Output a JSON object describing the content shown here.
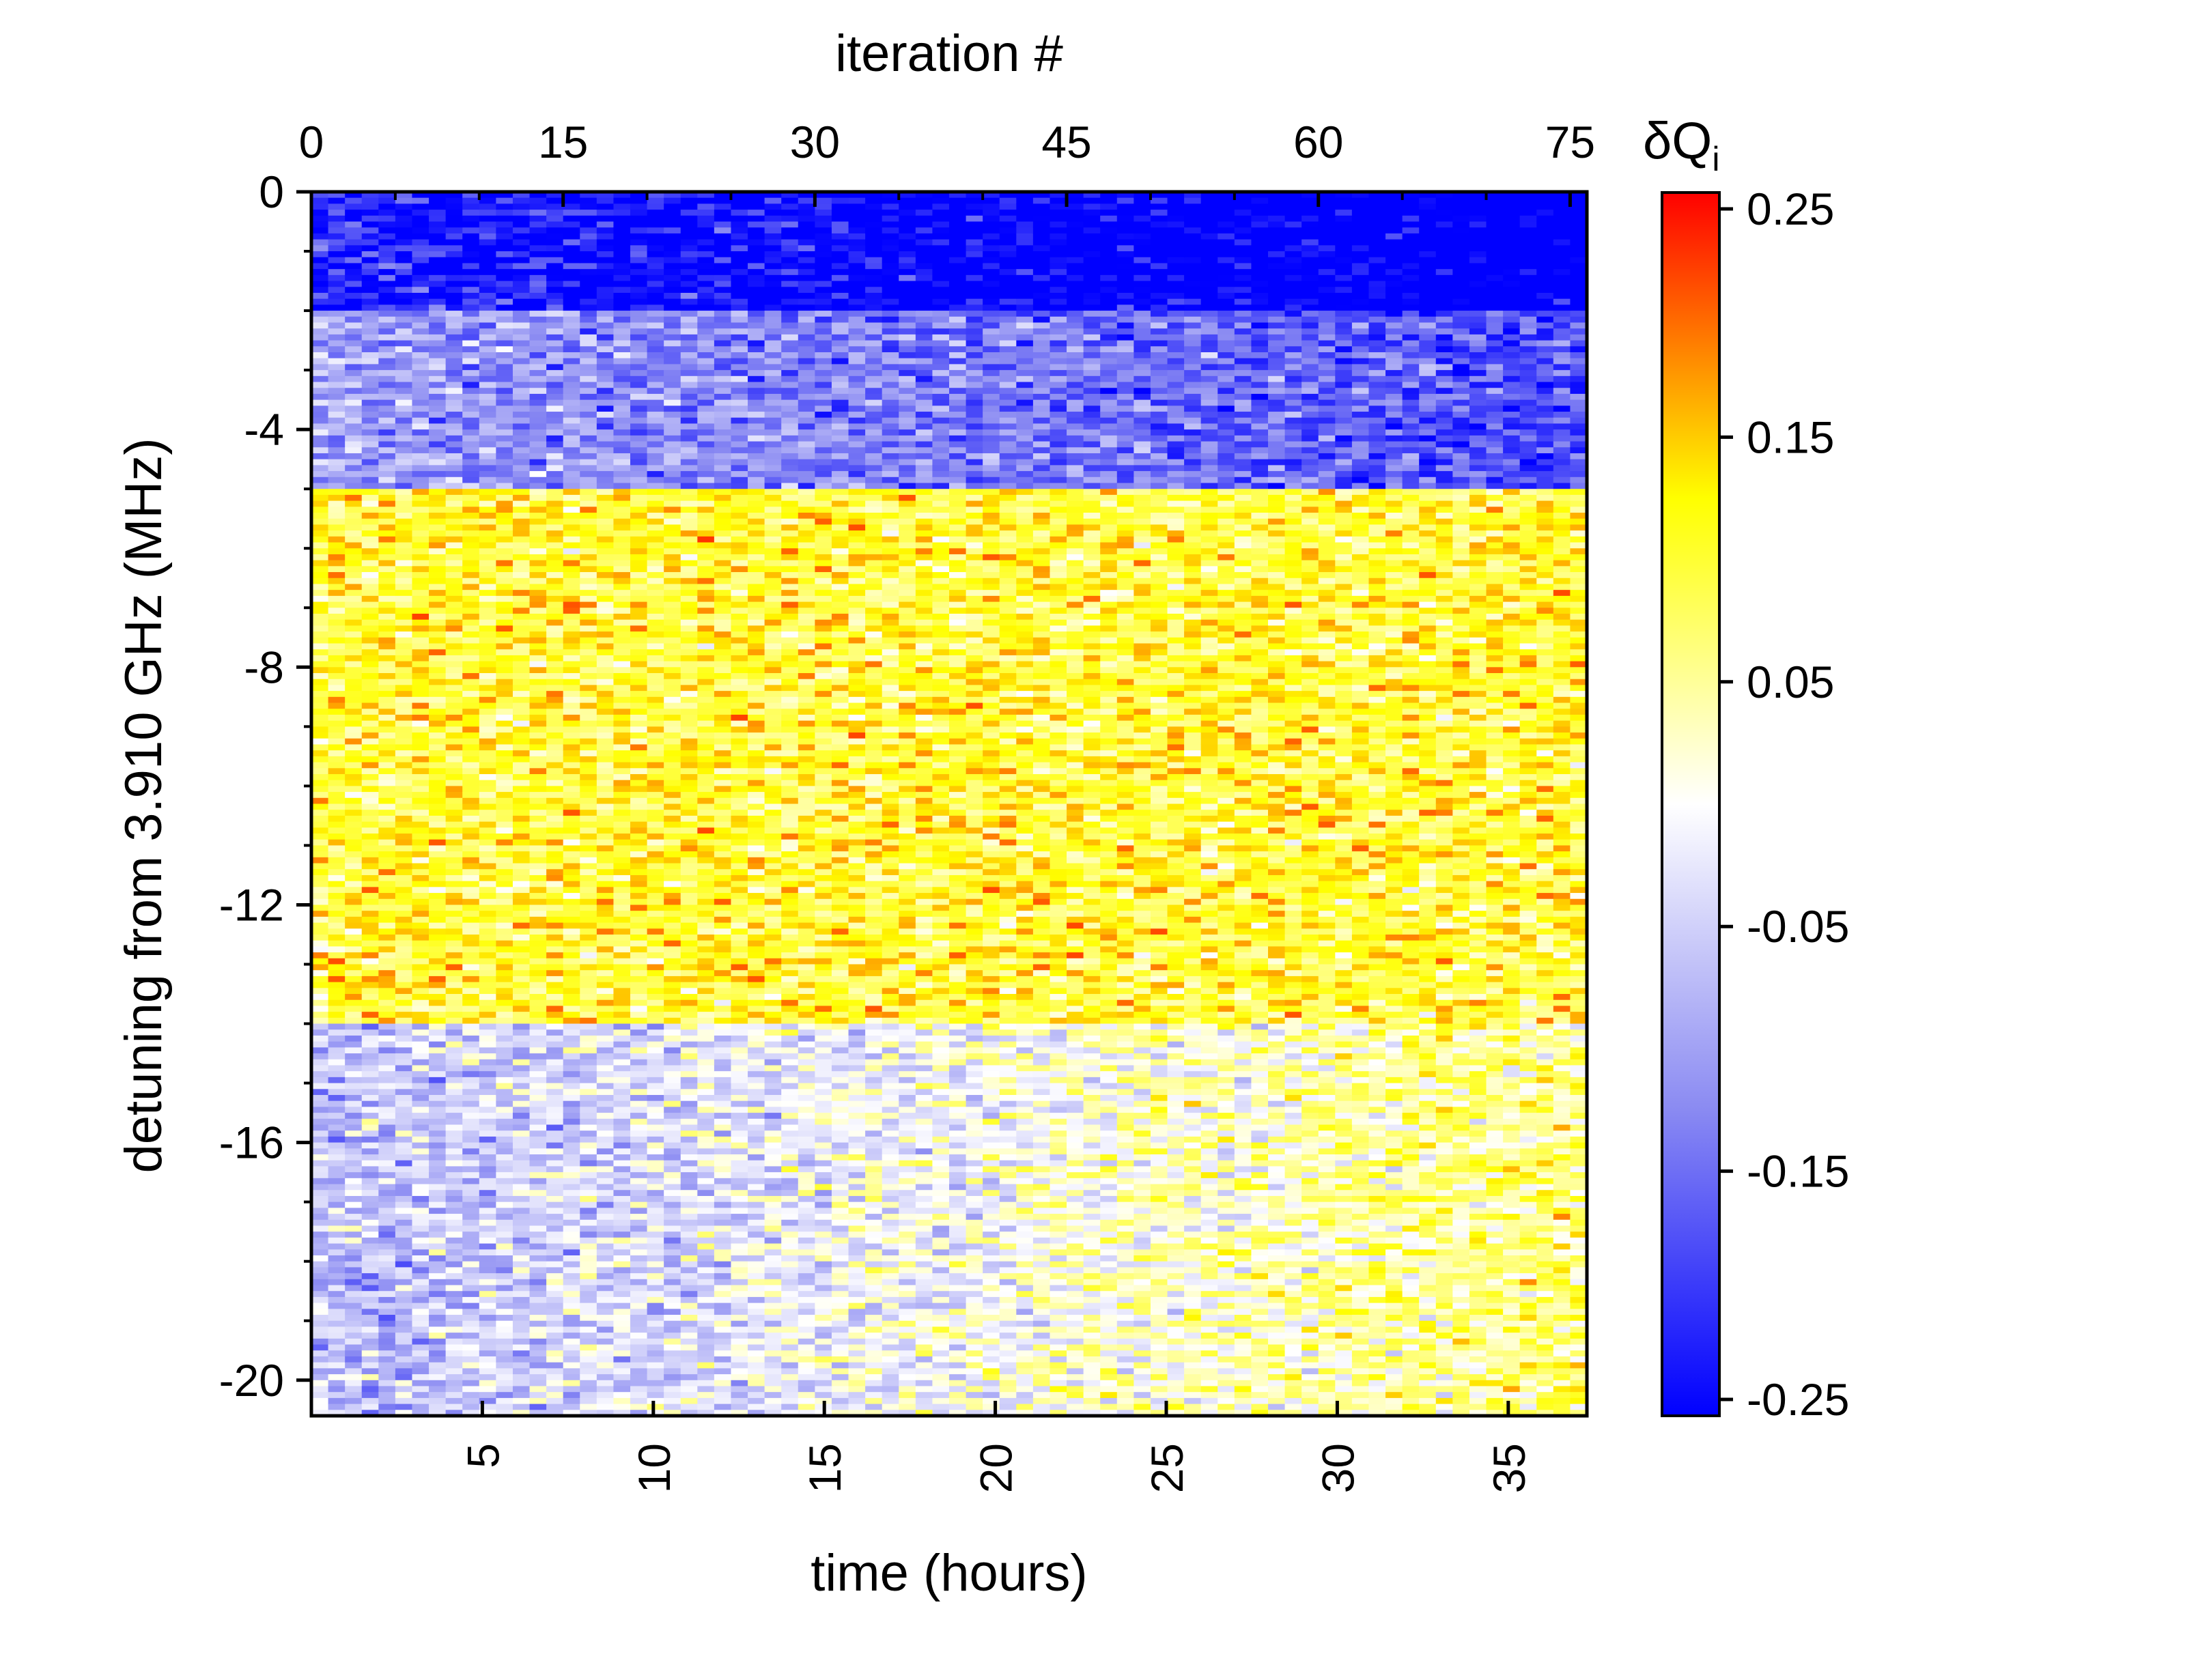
{
  "chart_data": {
    "type": "heatmap",
    "title": "",
    "top_axis": {
      "label": "iteration #",
      "ticks": [
        0,
        15,
        30,
        45,
        60,
        75
      ],
      "range": [
        0,
        76
      ]
    },
    "bottom_axis": {
      "label": "time (hours)",
      "ticks": [
        5,
        10,
        15,
        20,
        25,
        30,
        35
      ],
      "range": [
        0,
        37.3
      ]
    },
    "left_axis": {
      "label": "detuning from 3.910 GHz (MHz)",
      "ticks": [
        0,
        -4,
        -8,
        -12,
        -16,
        -20
      ],
      "range": [
        -20.6,
        0
      ]
    },
    "colorbar": {
      "label_main": "δQ",
      "label_sub": "i",
      "ticks": [
        0.25,
        0.15,
        0.05,
        -0.05,
        -0.15,
        -0.25
      ],
      "range": [
        -0.25,
        0.25
      ],
      "colormap": [
        "#0000ff",
        "#8a8af2",
        "#ffffff",
        "#ffff00",
        "#ff0000"
      ]
    },
    "grid": {
      "columns": 76,
      "rows": 206,
      "description_of_pattern": [
        {
          "detuning_range": [
            0,
            -2
          ],
          "typical_value": -0.22
        },
        {
          "detuning_range": [
            -2,
            -5
          ],
          "typical_value": -0.1
        },
        {
          "detuning_range": [
            -5,
            -14
          ],
          "typical_value": 0.1
        },
        {
          "detuning_range": [
            -14,
            -20.6
          ],
          "typical_value": -0.07
        }
      ]
    }
  }
}
